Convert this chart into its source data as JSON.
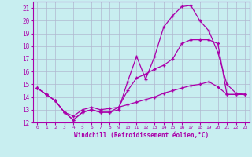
{
  "xlabel": "Windchill (Refroidissement éolien,°C)",
  "bg_color": "#c8eef0",
  "grid_color": "#b0b8d0",
  "line_color": "#aa00aa",
  "xlim": [
    -0.5,
    23.5
  ],
  "ylim": [
    12,
    21.5
  ],
  "xticks": [
    0,
    1,
    2,
    3,
    4,
    5,
    6,
    7,
    8,
    9,
    10,
    11,
    12,
    13,
    14,
    15,
    16,
    17,
    18,
    19,
    20,
    21,
    22,
    23
  ],
  "yticks": [
    12,
    13,
    14,
    15,
    16,
    17,
    18,
    19,
    20,
    21
  ],
  "line1_x": [
    0,
    1,
    2,
    3,
    4,
    5,
    6,
    7,
    8,
    9,
    10,
    11,
    12,
    13,
    14,
    15,
    16,
    17,
    18,
    19,
    20,
    21,
    22,
    23
  ],
  "line1_y": [
    14.7,
    14.2,
    13.7,
    12.8,
    12.2,
    12.8,
    13.0,
    12.8,
    12.8,
    13.0,
    15.2,
    17.2,
    15.4,
    17.2,
    19.5,
    20.4,
    21.1,
    21.2,
    20.0,
    19.2,
    17.5,
    15.0,
    14.3,
    14.2
  ],
  "line2_x": [
    0,
    1,
    2,
    3,
    4,
    5,
    6,
    7,
    8,
    9,
    10,
    11,
    12,
    13,
    14,
    15,
    16,
    17,
    18,
    19,
    20,
    21,
    22,
    23
  ],
  "line2_y": [
    14.7,
    14.2,
    13.7,
    12.8,
    12.2,
    12.8,
    13.0,
    12.8,
    12.8,
    13.2,
    14.5,
    15.5,
    15.8,
    16.2,
    16.5,
    17.0,
    18.2,
    18.5,
    18.5,
    18.5,
    18.2,
    14.2,
    14.2,
    14.2
  ],
  "line3_x": [
    0,
    1,
    2,
    3,
    4,
    5,
    6,
    7,
    8,
    9,
    10,
    11,
    12,
    13,
    14,
    15,
    16,
    17,
    18,
    19,
    20,
    21,
    22,
    23
  ],
  "line3_y": [
    14.7,
    14.2,
    13.7,
    12.8,
    12.5,
    13.0,
    13.2,
    13.0,
    13.1,
    13.2,
    13.4,
    13.6,
    13.8,
    14.0,
    14.3,
    14.5,
    14.7,
    14.9,
    15.0,
    15.2,
    14.8,
    14.2,
    14.2,
    14.2
  ]
}
